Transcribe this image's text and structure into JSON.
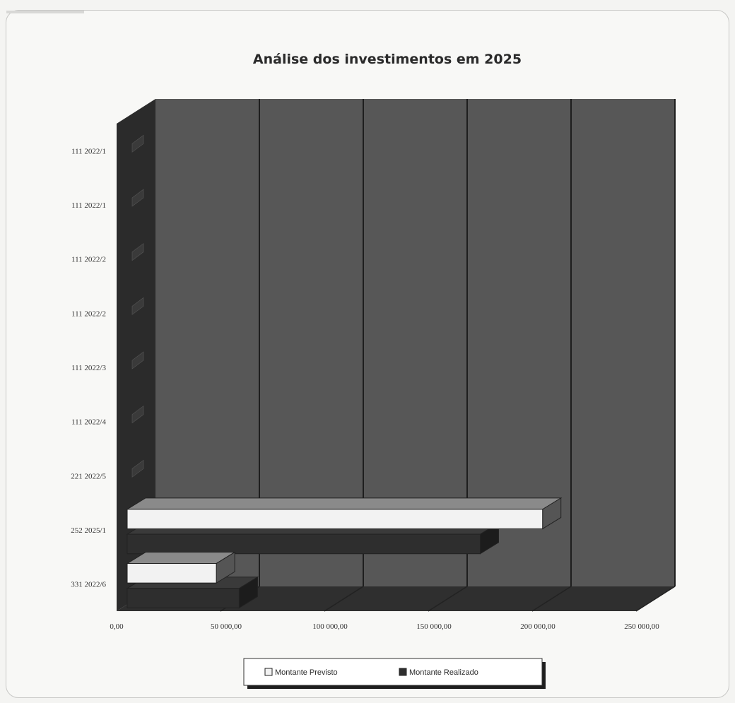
{
  "chart_data": {
    "type": "bar",
    "orientation": "horizontal",
    "three_d": true,
    "title": "Análise dos investimentos em 2025",
    "xlabel": "",
    "ylabel": "",
    "categories": [
      "111 2022/1",
      "111 2022/1",
      "111 2022/2",
      "111 2022/2",
      "111 2022/3",
      "111 2022/4",
      "221 2022/5",
      "252 2025/1",
      "331 2022/6"
    ],
    "series": [
      {
        "name": "Montante Previsto",
        "values": [
          0,
          0,
          0,
          0,
          0,
          0,
          0,
          205000,
          48000
        ],
        "color": "#f2f2f2"
      },
      {
        "name": "Montante Realizado",
        "values": [
          0,
          0,
          0,
          0,
          0,
          0,
          0,
          175000,
          59000
        ],
        "color": "#2e2e2e"
      }
    ],
    "x_ticks": [
      "0,00",
      "50 000,00",
      "100 000,00",
      "150 000,00",
      "200 000,00",
      "250 000,00"
    ],
    "xlim": [
      0,
      250000
    ],
    "grid": true,
    "legend_position": "bottom",
    "colors": {
      "plot_wall": "#575757",
      "floor": "#2f2f2f",
      "side_wall": "#2b2b2b",
      "gridline": "#1e1e1e"
    }
  }
}
